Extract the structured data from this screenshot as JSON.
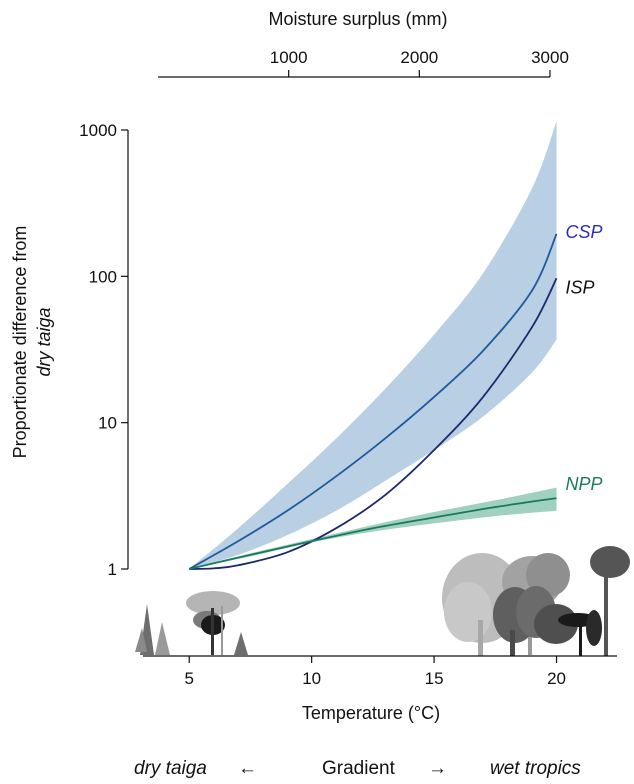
{
  "chart_data": {
    "type": "line",
    "x_top_label": "Moisture surplus (mm)",
    "x_top_ticks": [
      1000,
      2000,
      3000
    ],
    "x_top_range": [
      0,
      3000
    ],
    "xlabel": "Temperature (°C)",
    "x_ticks": [
      5,
      10,
      15,
      20
    ],
    "xlim": [
      2.5,
      23
    ],
    "ylabel_line1": "Proportionate difference from",
    "ylabel_line2": "dry taiga",
    "y_scale": "log",
    "ylim": [
      1,
      1000
    ],
    "y_ticks": [
      1,
      10,
      100,
      1000
    ],
    "series": [
      {
        "name": "CSP",
        "color": "#1f5a9c",
        "label_color": "#2b2bc0",
        "x": [
          5,
          7,
          9,
          11,
          13,
          15,
          17,
          19,
          20
        ],
        "values": [
          1.0,
          1.55,
          2.5,
          4.3,
          7.8,
          15,
          31,
          80,
          195
        ],
        "band_lower": [
          1.0,
          1.25,
          1.7,
          2.5,
          4.0,
          6.5,
          11,
          22,
          37
        ],
        "band_upper": [
          1.0,
          1.9,
          3.8,
          7.8,
          17,
          40,
          105,
          400,
          1150
        ],
        "band_color": "#b8cfe4"
      },
      {
        "name": "ISP",
        "color": "#1a2a6c",
        "label_color": "#111111",
        "x": [
          5,
          6,
          7,
          9,
          11,
          13,
          15,
          17,
          19,
          20
        ],
        "values": [
          1.0,
          1.01,
          1.06,
          1.3,
          1.9,
          3.2,
          6.5,
          15,
          45,
          97
        ]
      },
      {
        "name": "NPP",
        "color": "#1a7a5e",
        "label_color": "#1a7a5e",
        "x": [
          5,
          7.5,
          10,
          12.5,
          15,
          17.5,
          20
        ],
        "values": [
          1.0,
          1.25,
          1.55,
          1.9,
          2.25,
          2.65,
          3.05
        ],
        "band_lower": [
          1.0,
          1.22,
          1.52,
          1.8,
          2.05,
          2.3,
          2.5
        ],
        "band_upper": [
          1.0,
          1.28,
          1.6,
          2.0,
          2.45,
          2.95,
          3.6
        ],
        "band_color": "#9fd0c0"
      }
    ]
  },
  "gradient": {
    "left_label": "dry taiga",
    "left_arrow": "←",
    "center_label": "Gradient",
    "right_arrow": "→",
    "right_label": "wet tropics"
  },
  "icons": [
    "taiga-trees-icon",
    "tropical-forest-icon"
  ]
}
